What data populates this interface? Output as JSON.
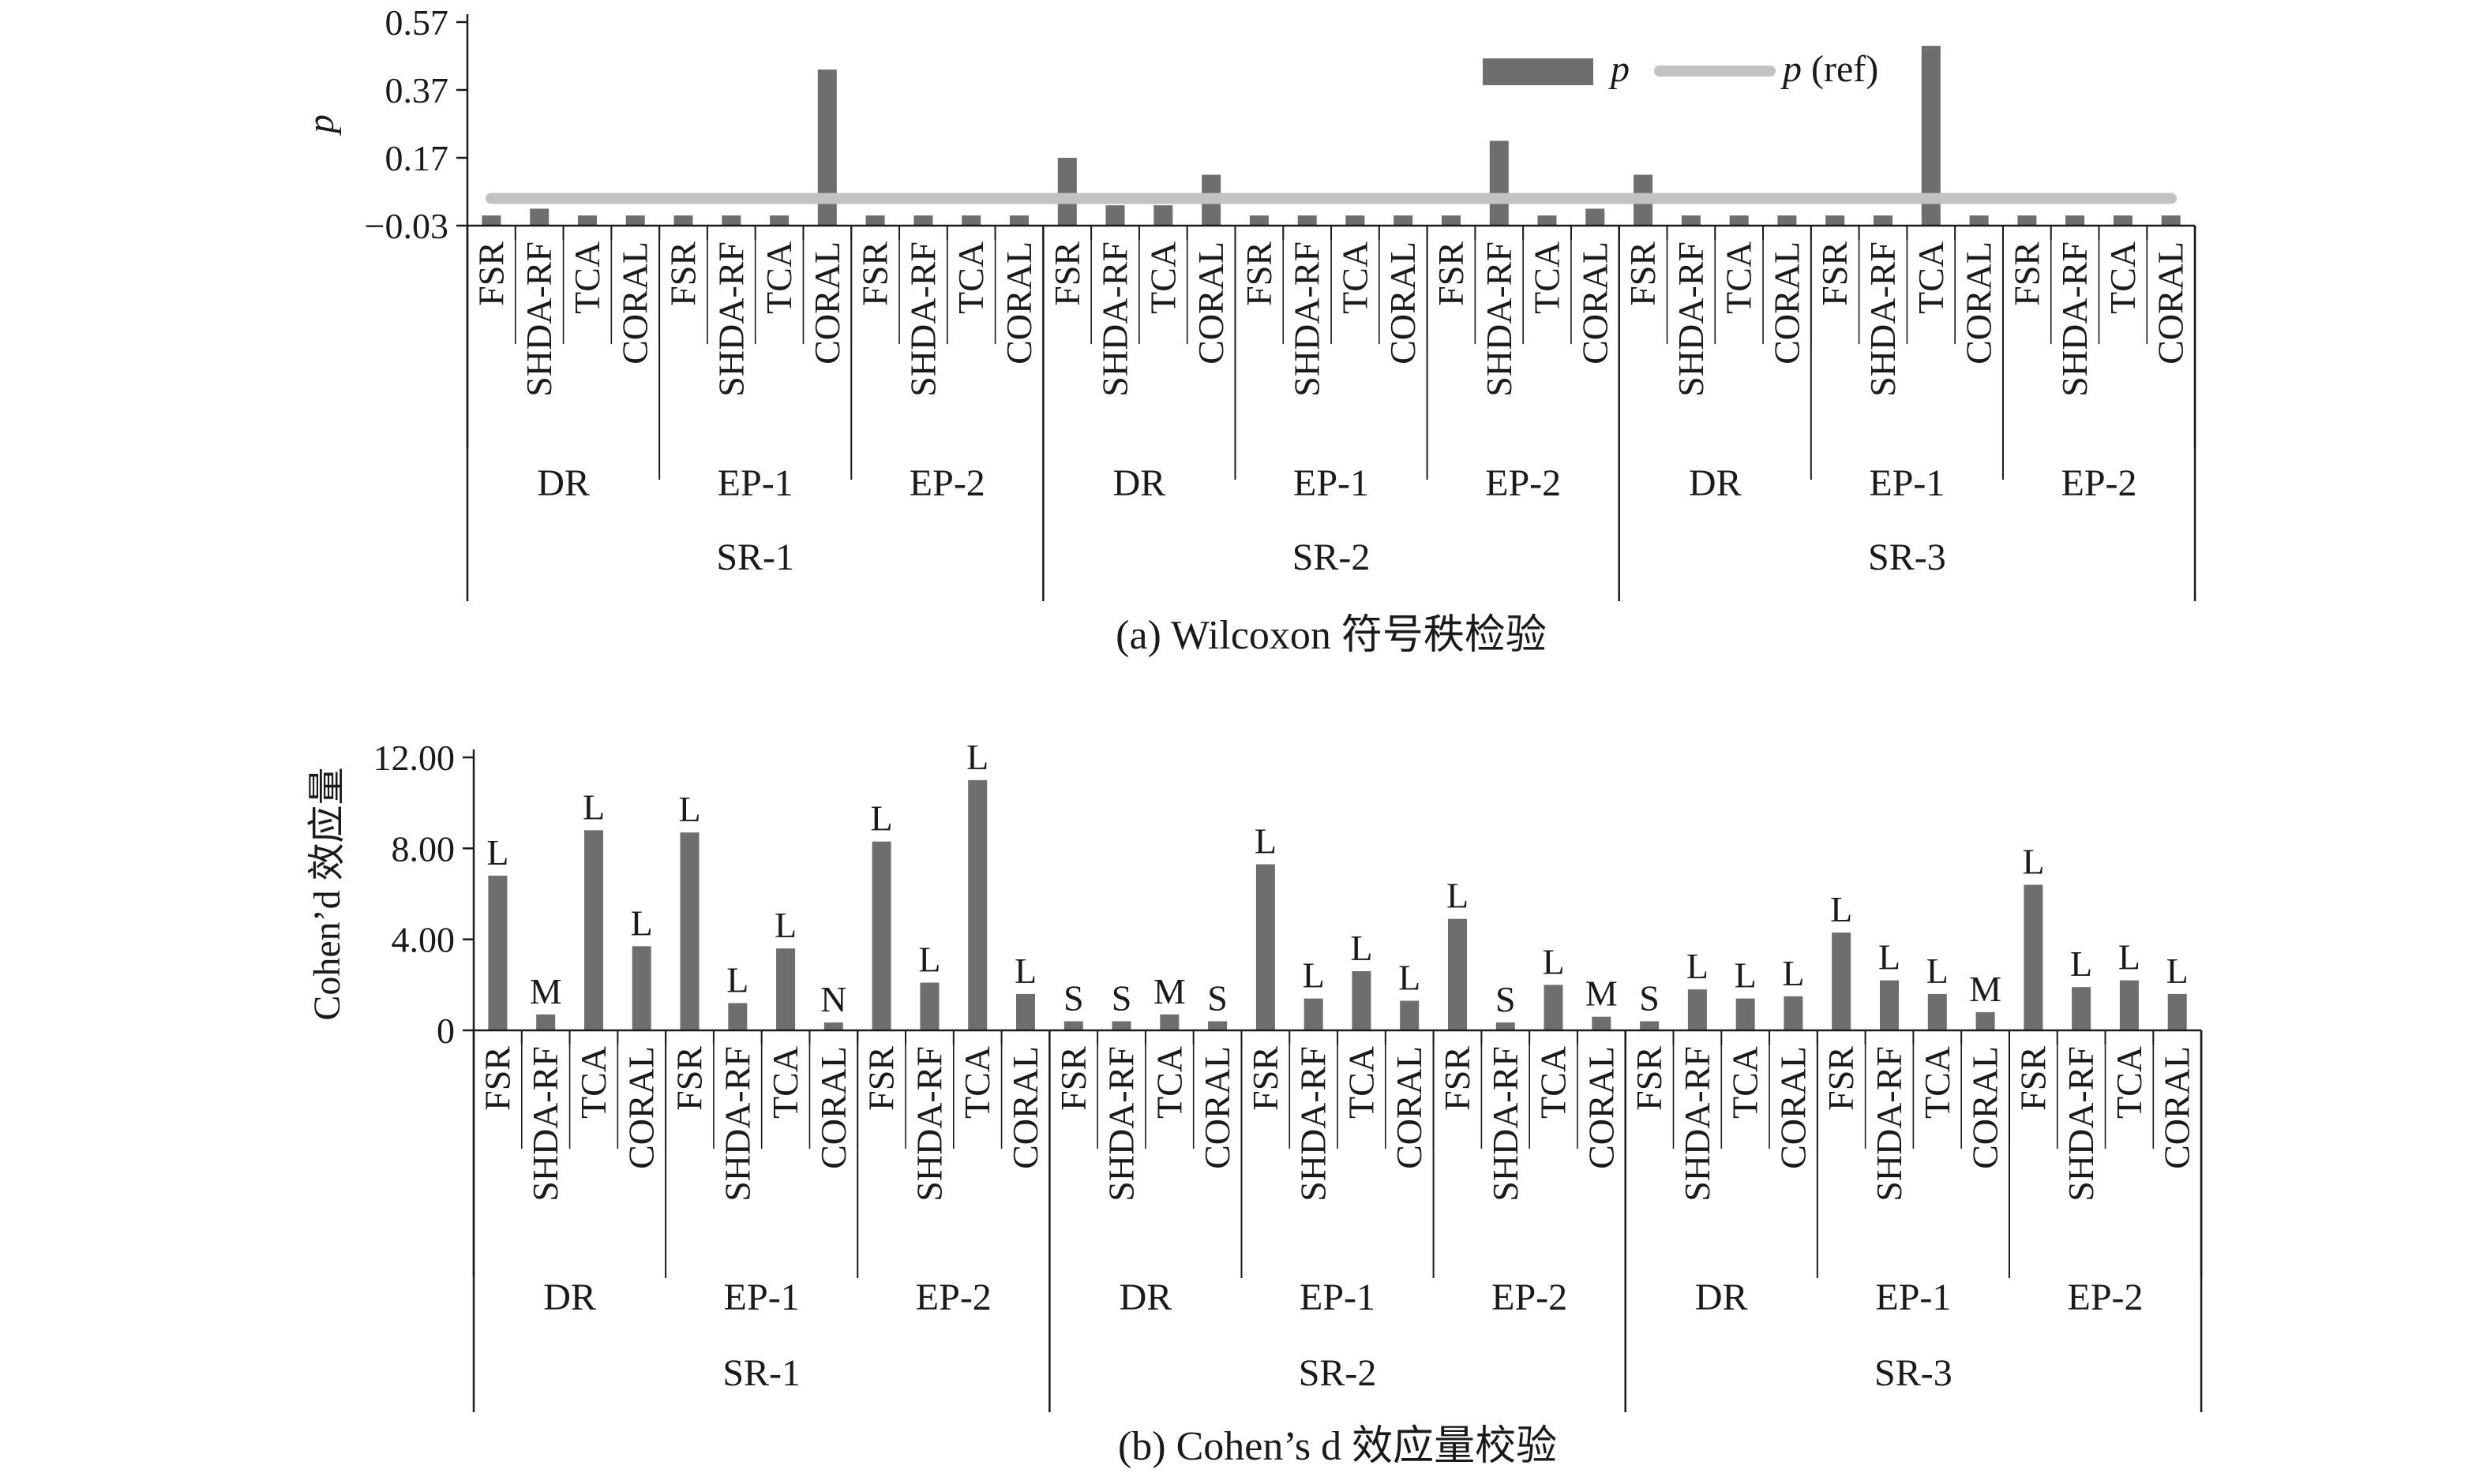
{
  "chart_data": [
    {
      "id": "wilcoxon",
      "type": "bar",
      "title": "(a) Wilcoxon 符号秩检验",
      "ylabel": "p",
      "ylim": [
        -0.03,
        0.57
      ],
      "yticks": [
        -0.03,
        0.17,
        0.37,
        0.57
      ],
      "ytick_labels": [
        "−0.03",
        "0.17",
        "0.37",
        "0.57"
      ],
      "legend": {
        "position": "top-right",
        "bar_label": "p",
        "line_label_italic": "p",
        "line_label_suffix": " (ref)"
      },
      "ref_line": 0.05,
      "levels": {
        "methods": [
          "FSR",
          "SHDA-RF",
          "TCA",
          "CORAL"
        ],
        "tasks": [
          "DR",
          "EP-1",
          "EP-2"
        ],
        "groups": [
          "SR-1",
          "SR-2",
          "SR-3"
        ]
      },
      "values": [
        0.0,
        0.02,
        0.0,
        0.0,
        0.0,
        0.0,
        0.0,
        0.43,
        0.0,
        0.0,
        0.0,
        0.0,
        0.17,
        0.03,
        0.03,
        0.12,
        0.0,
        0.0,
        0.0,
        0.0,
        0.0,
        0.22,
        0.0,
        0.02,
        0.12,
        0.0,
        0.0,
        0.0,
        0.0,
        0.0,
        0.5,
        0.0,
        0.0,
        0.0,
        0.0,
        0.0
      ],
      "colors": {
        "bar": "#6e6e6e",
        "ref": "#c2c2c2",
        "axis": "#1a1a1a"
      }
    },
    {
      "id": "cohens",
      "type": "bar",
      "title": "(b) Cohen’s d 效应量校验",
      "ylabel": "Cohen’d 效应量",
      "ylim": [
        0,
        12
      ],
      "yticks": [
        0,
        4,
        8,
        12
      ],
      "ytick_labels": [
        "0",
        "4.00",
        "8.00",
        "12.00"
      ],
      "levels": {
        "methods": [
          "FSR",
          "SHDA-RF",
          "TCA",
          "CORAL"
        ],
        "tasks": [
          "DR",
          "EP-1",
          "EP-2"
        ],
        "groups": [
          "SR-1",
          "SR-2",
          "SR-3"
        ]
      },
      "values": [
        6.8,
        0.7,
        8.8,
        3.7,
        8.7,
        1.2,
        3.6,
        0.2,
        8.3,
        2.1,
        11.0,
        1.6,
        0.4,
        0.4,
        0.7,
        0.4,
        7.3,
        1.4,
        2.6,
        1.3,
        4.9,
        0.3,
        2.0,
        0.6,
        0.4,
        1.8,
        1.4,
        1.5,
        4.3,
        2.2,
        1.6,
        0.8,
        6.4,
        1.9,
        2.2,
        1.6
      ],
      "bar_labels": [
        "L",
        "M",
        "L",
        "L",
        "L",
        "L",
        "L",
        "N",
        "L",
        "L",
        "L",
        "L",
        "S",
        "S",
        "M",
        "S",
        "L",
        "L",
        "L",
        "L",
        "L",
        "S",
        "L",
        "M",
        "S",
        "L",
        "L",
        "L",
        "L",
        "L",
        "L",
        "M",
        "L",
        "L",
        "L",
        "L"
      ],
      "colors": {
        "bar": "#6e6e6e",
        "axis": "#1a1a1a"
      }
    }
  ]
}
